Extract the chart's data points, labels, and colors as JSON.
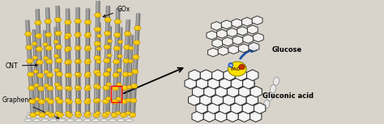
{
  "bg_color": "#d8d4cc",
  "labels": {
    "GOx": "GOx",
    "CNT": "CNT",
    "Graphene": "Graphene",
    "Glucose": "Glucose",
    "Gluconic_acid": "Gluconic acid",
    "FAD": "FAD"
  },
  "gold_color": "#F5C800",
  "gold_dark": "#B8860B",
  "gold_light": "#FFE55C",
  "cnt_color": "#888888",
  "cnt_dark": "#555555",
  "graphene_hex_color": "#222222",
  "graphene_hex_face": "#f5f5f5",
  "graphene_base_color": "#CCCCCC",
  "arrow_color": "#1E4FA0",
  "text_color": "#000000",
  "red_box_color": "#CC0000",
  "enzyme_yellow": "#FFE000",
  "enzyme_red": "#CC3300",
  "electron_blue": "#3366CC",
  "white_ellipse": "#EEEEEE"
}
